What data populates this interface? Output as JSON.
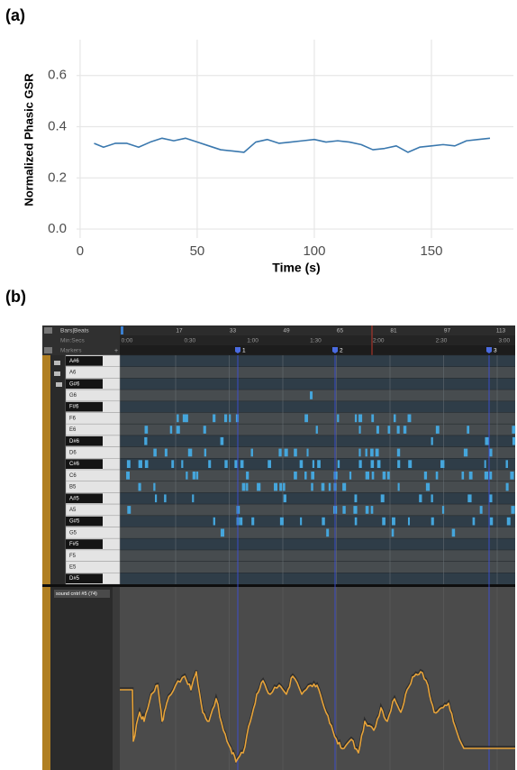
{
  "panel_labels": [
    "(a)",
    "(b)"
  ],
  "chart_data": {
    "type": "line",
    "xlabel": "Time (s)",
    "ylabel": "Normalized Phasic GSR",
    "color": "#3a78ae",
    "x": [
      6,
      10,
      15,
      20,
      25,
      30,
      35,
      40,
      45,
      50,
      55,
      60,
      65,
      70,
      75,
      80,
      85,
      90,
      95,
      100,
      105,
      110,
      115,
      120,
      125,
      130,
      135,
      140,
      145,
      150,
      155,
      160,
      165,
      170,
      175
    ],
    "values": [
      0.335,
      0.32,
      0.335,
      0.335,
      0.32,
      0.34,
      0.355,
      0.345,
      0.355,
      0.34,
      0.325,
      0.31,
      0.305,
      0.3,
      0.34,
      0.35,
      0.335,
      0.34,
      0.345,
      0.35,
      0.34,
      0.345,
      0.34,
      0.33,
      0.31,
      0.315,
      0.325,
      0.3,
      0.32,
      0.325,
      0.33,
      0.325,
      0.345,
      0.35,
      0.355
    ],
    "xlim": [
      -1.5,
      185
    ],
    "ylim": [
      -0.035,
      0.74
    ],
    "xticks": [
      0,
      50,
      100,
      150
    ],
    "yticks": [
      {
        "value": 0,
        "label": "0.0"
      },
      {
        "value": 0.2,
        "label": "0.2"
      },
      {
        "value": 0.4,
        "label": "0.4"
      },
      {
        "value": 0.6,
        "label": "0.6"
      }
    ],
    "grid": true
  },
  "daw": {
    "ruler": {
      "bars_beats": "Bars|Beats",
      "min_secs": "Min:Secs",
      "markers": "Markers"
    },
    "bars": [
      17,
      33,
      49,
      65,
      81,
      97,
      113
    ],
    "times": [
      "0:00",
      "0:30",
      "1:00",
      "1:30",
      "2:00",
      "2:30",
      "3:00"
    ],
    "markers": [
      "1",
      "2",
      "3"
    ],
    "keys": [
      "A#6",
      "A6",
      "G#6",
      "G6",
      "F#6",
      "F6",
      "E6",
      "D#6",
      "D6",
      "C#6",
      "C6",
      "B5",
      "A#5",
      "A5",
      "G#5",
      "G5",
      "F#5",
      "F5",
      "E5",
      "D#5"
    ],
    "lane_label": "sound cntrl #5 (74)"
  }
}
